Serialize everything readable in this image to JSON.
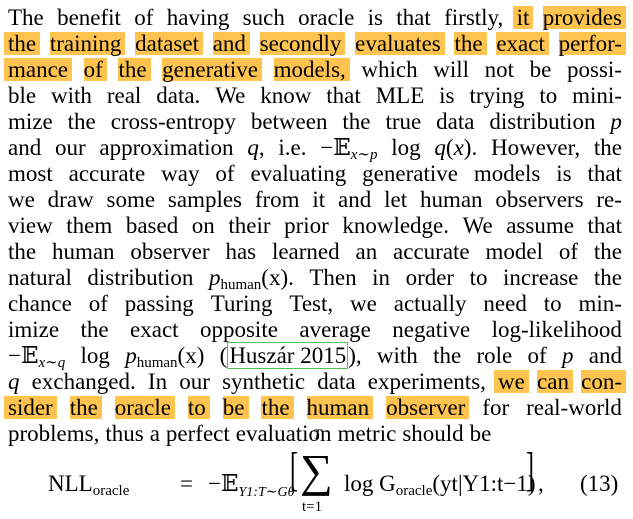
{
  "paragraph": {
    "lines": [
      {
        "words": [
          {
            "t": "The"
          },
          {
            "t": "benefit"
          },
          {
            "t": "of"
          },
          {
            "t": "having"
          },
          {
            "t": "such"
          },
          {
            "t": "oracle"
          },
          {
            "t": "is"
          },
          {
            "t": "that"
          },
          {
            "t": "firstly,"
          },
          {
            "t": "it",
            "hl": true
          },
          {
            "t": "provides",
            "hl": true
          }
        ]
      },
      {
        "words": [
          {
            "t": "the",
            "hl": true
          },
          {
            "t": "training",
            "hl": true
          },
          {
            "t": "dataset",
            "hl": true
          },
          {
            "t": "and",
            "hl": true
          },
          {
            "t": "secondly",
            "hl": true
          },
          {
            "t": "evaluates",
            "hl": true
          },
          {
            "t": "the",
            "hl": true
          },
          {
            "t": "exact",
            "hl": true
          },
          {
            "t": "perfor-",
            "hl": true
          }
        ]
      },
      {
        "words": [
          {
            "t": "mance",
            "hl": true
          },
          {
            "t": "of",
            "hl": true
          },
          {
            "t": "the",
            "hl": true
          },
          {
            "t": "generative",
            "hl": true
          },
          {
            "t": "models,",
            "hl": true
          },
          {
            "t": "which"
          },
          {
            "t": "will"
          },
          {
            "t": "not"
          },
          {
            "t": "be"
          },
          {
            "t": "possi-"
          }
        ]
      },
      {
        "words": [
          {
            "t": "ble"
          },
          {
            "t": "with"
          },
          {
            "t": "real"
          },
          {
            "t": "data."
          },
          {
            "t": "We"
          },
          {
            "t": "know"
          },
          {
            "t": "that"
          },
          {
            "t": "MLE"
          },
          {
            "t": "is"
          },
          {
            "t": "trying"
          },
          {
            "t": "to"
          },
          {
            "t": "mini-"
          }
        ]
      },
      {
        "words": [
          {
            "t": "mize"
          },
          {
            "t": "the"
          },
          {
            "t": "cross-entropy"
          },
          {
            "t": "between"
          },
          {
            "t": "the"
          },
          {
            "t": "true"
          },
          {
            "t": "data"
          },
          {
            "t": "distribution"
          },
          {
            "t": "p",
            "it": true
          }
        ]
      },
      {
        "words": [
          {
            "t": "and"
          },
          {
            "t": "our"
          },
          {
            "t": "approximation"
          },
          {
            "t": "q,",
            "itfirst": true
          },
          {
            "t": "i.e."
          },
          {
            "t": "−𝔼",
            "mathE": true,
            "sub": "x∼p"
          },
          {
            "t": "log"
          },
          {
            "t": "q(x).",
            "mathq": true
          },
          {
            "t": "However,"
          },
          {
            "t": "the"
          }
        ]
      },
      {
        "words": [
          {
            "t": "most"
          },
          {
            "t": "accurate"
          },
          {
            "t": "way"
          },
          {
            "t": "of"
          },
          {
            "t": "evaluating"
          },
          {
            "t": "generative"
          },
          {
            "t": "models"
          },
          {
            "t": "is"
          },
          {
            "t": "that"
          }
        ]
      },
      {
        "words": [
          {
            "t": "we"
          },
          {
            "t": "draw"
          },
          {
            "t": "some"
          },
          {
            "t": "samples"
          },
          {
            "t": "from"
          },
          {
            "t": "it"
          },
          {
            "t": "and"
          },
          {
            "t": "let"
          },
          {
            "t": "human"
          },
          {
            "t": "observers"
          },
          {
            "t": "re-"
          }
        ]
      },
      {
        "words": [
          {
            "t": "view"
          },
          {
            "t": "them"
          },
          {
            "t": "based"
          },
          {
            "t": "on"
          },
          {
            "t": "their"
          },
          {
            "t": "prior"
          },
          {
            "t": "knowledge."
          },
          {
            "t": "We"
          },
          {
            "t": "assume"
          },
          {
            "t": "that"
          }
        ]
      },
      {
        "words": [
          {
            "t": "the"
          },
          {
            "t": "human"
          },
          {
            "t": "observer"
          },
          {
            "t": "has"
          },
          {
            "t": "learned"
          },
          {
            "t": "an"
          },
          {
            "t": "accurate"
          },
          {
            "t": "model"
          },
          {
            "t": "of"
          },
          {
            "t": "the"
          }
        ]
      },
      {
        "words": [
          {
            "t": "natural"
          },
          {
            "t": "distribution"
          },
          {
            "t": "p",
            "phuman": true,
            "after": "(x)."
          },
          {
            "t": "Then"
          },
          {
            "t": "in"
          },
          {
            "t": "order"
          },
          {
            "t": "to"
          },
          {
            "t": "increase"
          },
          {
            "t": "the"
          }
        ]
      },
      {
        "words": [
          {
            "t": "chance"
          },
          {
            "t": "of"
          },
          {
            "t": "passing"
          },
          {
            "t": "Turing"
          },
          {
            "t": "Test,"
          },
          {
            "t": "we"
          },
          {
            "t": "actually"
          },
          {
            "t": "need"
          },
          {
            "t": "to"
          },
          {
            "t": "min-"
          }
        ]
      },
      {
        "words": [
          {
            "t": "imize"
          },
          {
            "t": "the"
          },
          {
            "t": "exact"
          },
          {
            "t": "opposite"
          },
          {
            "t": "average"
          },
          {
            "t": "negative"
          },
          {
            "t": "log-likelihood"
          }
        ]
      },
      {
        "words": [
          {
            "t": "−𝔼",
            "mathE": true,
            "sub": "x∼q"
          },
          {
            "t": "log"
          },
          {
            "t": "p",
            "phuman": true,
            "after": "(x)"
          },
          {
            "t": "(Huszár 2015)",
            "cite": true,
            "pre": "(",
            "post": "),"
          },
          {
            "t": "with"
          },
          {
            "t": "the"
          },
          {
            "t": "role"
          },
          {
            "t": "of"
          },
          {
            "t": "p",
            "it": true
          },
          {
            "t": "and"
          }
        ]
      },
      {
        "words": [
          {
            "t": "q",
            "it": true
          },
          {
            "t": "exchanged."
          },
          {
            "t": "In"
          },
          {
            "t": "our"
          },
          {
            "t": "synthetic"
          },
          {
            "t": "data"
          },
          {
            "t": "experiments,"
          },
          {
            "t": "we",
            "hl": true
          },
          {
            "t": "can",
            "hl": true
          },
          {
            "t": "con-",
            "hl": true
          }
        ]
      },
      {
        "words": [
          {
            "t": "sider",
            "hl": true
          },
          {
            "t": "the",
            "hl": true
          },
          {
            "t": "oracle",
            "hl": true
          },
          {
            "t": "to",
            "hl": true
          },
          {
            "t": "be",
            "hl": true
          },
          {
            "t": "the",
            "hl": true
          },
          {
            "t": "human",
            "hl": true
          },
          {
            "t": "observer",
            "hl": true
          },
          {
            "t": "for"
          },
          {
            "t": "real-world"
          }
        ]
      },
      {
        "last": true,
        "words": [
          {
            "t": "problems,"
          },
          {
            "t": "thus"
          },
          {
            "t": "a"
          },
          {
            "t": "perfect"
          },
          {
            "t": "evaluation"
          },
          {
            "t": "metric"
          },
          {
            "t": "should"
          },
          {
            "t": "be"
          }
        ]
      }
    ],
    "human_sub": "human",
    "citation": "Huszár 2015"
  },
  "equation": {
    "lhs": "NLL",
    "lhs_sub": "oracle",
    "equals": "=",
    "expect_prefix": "−𝔼",
    "expect_sub": "Y1:T∼Gθ",
    "sum_upper": "T",
    "sum_lower": "t=1",
    "body": "log G",
    "body_sub": "oracle",
    "body_args": "(yt|Y1:t−1)",
    "number": "(13)"
  },
  "colors": {
    "highlight": "#ffc34f",
    "citation_box": "#4fc24f",
    "text": "#000000",
    "background": "#ffffff"
  }
}
